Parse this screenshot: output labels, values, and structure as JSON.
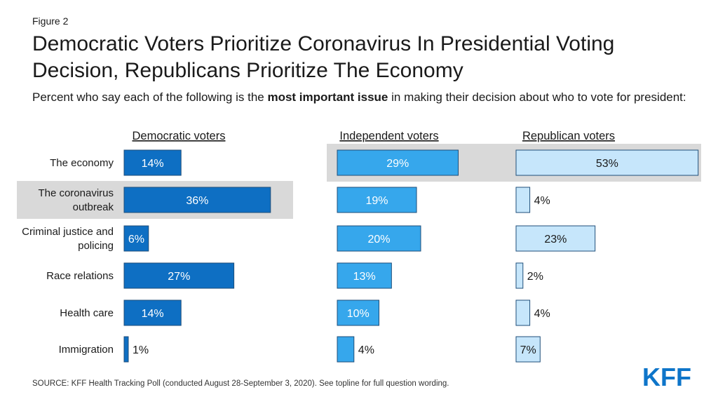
{
  "figure_label": "Figure 2",
  "title": "Democratic Voters Prioritize Coronavirus In Presidential Voting Decision, Republicans Prioritize The Economy",
  "subtitle": {
    "before": "Percent who say each of the following is the ",
    "bold": "most important issue",
    "after": " in making their decision about who to vote for president:"
  },
  "source": "SOURCE: KFF Health Tracking Poll (conducted August 28-September 3, 2020). See topline for full question wording.",
  "logo": {
    "text": "KFF",
    "color": "#0e75c9"
  },
  "chart_data": {
    "type": "bar",
    "orientation": "horizontal",
    "unit": "%",
    "categories": [
      "The economy",
      "The coronavirus outbreak",
      "Criminal justice and policing",
      "Race relations",
      "Health care",
      "Immigration"
    ],
    "series": [
      {
        "name": "Democratic voters",
        "color": "#0e6fc3",
        "label_color": "#ffffff",
        "values": [
          14,
          36,
          6,
          27,
          14,
          1
        ],
        "highlight_index": 1
      },
      {
        "name": "Independent voters",
        "color": "#36a7ec",
        "label_color": "#ffffff",
        "values": [
          29,
          19,
          20,
          13,
          10,
          4
        ],
        "highlight_index": 0
      },
      {
        "name": "Republican voters",
        "color": "#c6e6fb",
        "label_color": "#1a1a1a",
        "values": [
          53,
          4,
          23,
          2,
          4,
          7
        ],
        "highlight_index": 0
      }
    ],
    "highlight_color": "#d9d9d9"
  }
}
